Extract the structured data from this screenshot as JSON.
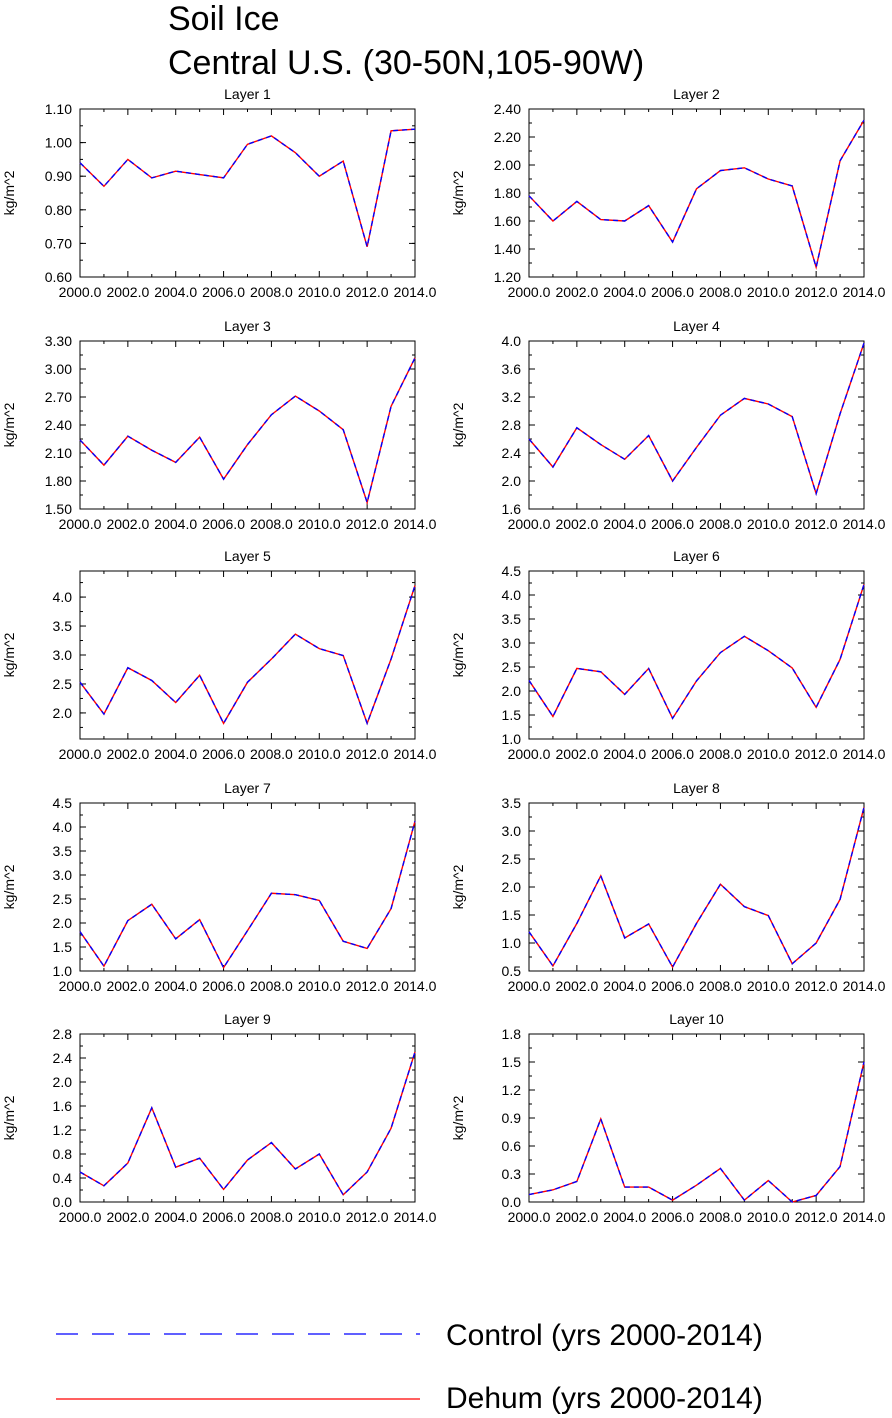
{
  "title": {
    "line1": "Soil Ice",
    "line2": "Central U.S. (30-50N,105-90W)"
  },
  "colors": {
    "control": "#0000ff",
    "dehum": "#ff0000",
    "axis": "#000000"
  },
  "legend": [
    {
      "name": "Control (yrs 2000-2014)",
      "style": "dashed",
      "color": "#0000ff"
    },
    {
      "name": "Dehum (yrs 2000-2014)",
      "style": "solid",
      "color": "#ff0000"
    }
  ],
  "chart_data": [
    {
      "type": "line",
      "title": "Layer 1",
      "ylabel": "kg/m^2",
      "x": [
        2000,
        2001,
        2002,
        2003,
        2004,
        2005,
        2006,
        2007,
        2008,
        2009,
        2010,
        2011,
        2012,
        2013,
        2014
      ],
      "xlim": [
        2000,
        2014
      ],
      "xticks": [
        "2000.0",
        "2002.0",
        "2004.0",
        "2006.0",
        "2008.0",
        "2010.0",
        "2012.0",
        "2014.0"
      ],
      "ylim": [
        0.6,
        1.1
      ],
      "yticks": [
        "0.60",
        "0.70",
        "0.80",
        "0.90",
        "1.00",
        "1.10"
      ],
      "series": [
        {
          "name": "Control (yrs 2000-2014)",
          "values": [
            0.94,
            0.87,
            0.95,
            0.895,
            0.915,
            0.905,
            0.895,
            0.995,
            1.02,
            0.97,
            0.9,
            0.945,
            0.69,
            1.035,
            1.04
          ]
        },
        {
          "name": "Dehum (yrs 2000-2014)",
          "values": [
            0.94,
            0.87,
            0.95,
            0.895,
            0.915,
            0.905,
            0.895,
            0.995,
            1.02,
            0.97,
            0.9,
            0.945,
            0.69,
            1.035,
            1.04
          ]
        }
      ]
    },
    {
      "type": "line",
      "title": "Layer 2",
      "ylabel": "kg/m^2",
      "x": [
        2000,
        2001,
        2002,
        2003,
        2004,
        2005,
        2006,
        2007,
        2008,
        2009,
        2010,
        2011,
        2012,
        2013,
        2014
      ],
      "xlim": [
        2000,
        2014
      ],
      "xticks": [
        "2000.0",
        "2002.0",
        "2004.0",
        "2006.0",
        "2008.0",
        "2010.0",
        "2012.0",
        "2014.0"
      ],
      "ylim": [
        1.2,
        2.4
      ],
      "yticks": [
        "1.20",
        "1.40",
        "1.60",
        "1.80",
        "2.00",
        "2.20",
        "2.40"
      ],
      "series": [
        {
          "name": "Control (yrs 2000-2014)",
          "values": [
            1.78,
            1.6,
            1.74,
            1.61,
            1.6,
            1.71,
            1.45,
            1.83,
            1.96,
            1.98,
            1.9,
            1.85,
            1.27,
            2.03,
            2.32
          ]
        },
        {
          "name": "Dehum (yrs 2000-2014)",
          "values": [
            1.78,
            1.6,
            1.74,
            1.61,
            1.6,
            1.71,
            1.45,
            1.83,
            1.96,
            1.98,
            1.9,
            1.85,
            1.27,
            2.03,
            2.32
          ]
        }
      ]
    },
    {
      "type": "line",
      "title": "Layer 3",
      "ylabel": "kg/m^2",
      "x": [
        2000,
        2001,
        2002,
        2003,
        2004,
        2005,
        2006,
        2007,
        2008,
        2009,
        2010,
        2011,
        2012,
        2013,
        2014
      ],
      "xlim": [
        2000,
        2014
      ],
      "xticks": [
        "2000.0",
        "2002.0",
        "2004.0",
        "2006.0",
        "2008.0",
        "2010.0",
        "2012.0",
        "2014.0"
      ],
      "ylim": [
        1.5,
        3.3
      ],
      "yticks": [
        "1.50",
        "1.80",
        "2.10",
        "2.40",
        "2.70",
        "3.00",
        "3.30"
      ],
      "series": [
        {
          "name": "Control (yrs 2000-2014)",
          "values": [
            2.24,
            1.97,
            2.28,
            2.13,
            2.0,
            2.27,
            1.82,
            2.19,
            2.51,
            2.71,
            2.55,
            2.35,
            1.57,
            2.6,
            3.12
          ]
        },
        {
          "name": "Dehum (yrs 2000-2014)",
          "values": [
            2.24,
            1.97,
            2.28,
            2.13,
            2.0,
            2.27,
            1.82,
            2.19,
            2.51,
            2.71,
            2.55,
            2.35,
            1.57,
            2.6,
            3.12
          ]
        }
      ]
    },
    {
      "type": "line",
      "title": "Layer 4",
      "ylabel": "kg/m^2",
      "x": [
        2000,
        2001,
        2002,
        2003,
        2004,
        2005,
        2006,
        2007,
        2008,
        2009,
        2010,
        2011,
        2012,
        2013,
        2014
      ],
      "xlim": [
        2000,
        2014
      ],
      "xticks": [
        "2000.0",
        "2002.0",
        "2004.0",
        "2006.0",
        "2008.0",
        "2010.0",
        "2012.0",
        "2014.0"
      ],
      "ylim": [
        1.6,
        4.0
      ],
      "yticks": [
        "1.6",
        "2.0",
        "2.4",
        "2.8",
        "3.2",
        "3.6",
        "4.0"
      ],
      "series": [
        {
          "name": "Control (yrs 2000-2014)",
          "values": [
            2.6,
            2.2,
            2.76,
            2.52,
            2.31,
            2.65,
            2.0,
            2.48,
            2.94,
            3.18,
            3.1,
            2.92,
            1.82,
            2.96,
            3.97
          ]
        },
        {
          "name": "Dehum (yrs 2000-2014)",
          "values": [
            2.6,
            2.2,
            2.76,
            2.52,
            2.31,
            2.65,
            2.0,
            2.48,
            2.94,
            3.18,
            3.1,
            2.92,
            1.82,
            2.96,
            3.97
          ]
        }
      ]
    },
    {
      "type": "line",
      "title": "Layer 5",
      "ylabel": "kg/m^2",
      "x": [
        2000,
        2001,
        2002,
        2003,
        2004,
        2005,
        2006,
        2007,
        2008,
        2009,
        2010,
        2011,
        2012,
        2013,
        2014
      ],
      "xlim": [
        2000,
        2014
      ],
      "xticks": [
        "2000.0",
        "2002.0",
        "2004.0",
        "2006.0",
        "2008.0",
        "2010.0",
        "2012.0",
        "2014.0"
      ],
      "ylim": [
        1.55,
        4.45
      ],
      "yticks": [
        "2.0",
        "2.5",
        "3.0",
        "3.5",
        "4.0"
      ],
      "series": [
        {
          "name": "Control (yrs 2000-2014)",
          "values": [
            2.53,
            1.98,
            2.78,
            2.56,
            2.18,
            2.65,
            1.82,
            2.53,
            2.93,
            3.36,
            3.11,
            2.99,
            1.82,
            2.93,
            4.2
          ]
        },
        {
          "name": "Dehum (yrs 2000-2014)",
          "values": [
            2.53,
            1.98,
            2.78,
            2.56,
            2.18,
            2.65,
            1.82,
            2.53,
            2.93,
            3.36,
            3.11,
            2.99,
            1.82,
            2.93,
            4.2
          ]
        }
      ]
    },
    {
      "type": "line",
      "title": "Layer 6",
      "ylabel": "kg/m^2",
      "x": [
        2000,
        2001,
        2002,
        2003,
        2004,
        2005,
        2006,
        2007,
        2008,
        2009,
        2010,
        2011,
        2012,
        2013,
        2014
      ],
      "xlim": [
        2000,
        2014
      ],
      "xticks": [
        "2000.0",
        "2002.0",
        "2004.0",
        "2006.0",
        "2008.0",
        "2010.0",
        "2012.0",
        "2014.0"
      ],
      "ylim": [
        1.0,
        4.5
      ],
      "yticks": [
        "1.0",
        "1.5",
        "2.0",
        "2.5",
        "3.0",
        "3.5",
        "4.0",
        "4.5"
      ],
      "series": [
        {
          "name": "Control (yrs 2000-2014)",
          "values": [
            2.22,
            1.47,
            2.47,
            2.4,
            1.93,
            2.47,
            1.43,
            2.21,
            2.8,
            3.14,
            2.84,
            2.48,
            1.66,
            2.66,
            4.22
          ]
        },
        {
          "name": "Dehum (yrs 2000-2014)",
          "values": [
            2.22,
            1.47,
            2.47,
            2.4,
            1.93,
            2.47,
            1.43,
            2.21,
            2.8,
            3.14,
            2.84,
            2.48,
            1.66,
            2.66,
            4.22
          ]
        }
      ]
    },
    {
      "type": "line",
      "title": "Layer 7",
      "ylabel": "kg/m^2",
      "x": [
        2000,
        2001,
        2002,
        2003,
        2004,
        2005,
        2006,
        2007,
        2008,
        2009,
        2010,
        2011,
        2012,
        2013,
        2014
      ],
      "xlim": [
        2000,
        2014
      ],
      "xticks": [
        "2000.0",
        "2002.0",
        "2004.0",
        "2006.0",
        "2008.0",
        "2010.0",
        "2012.0",
        "2014.0"
      ],
      "ylim": [
        1.0,
        4.5
      ],
      "yticks": [
        "1.0",
        "1.5",
        "2.0",
        "2.5",
        "3.0",
        "3.5",
        "4.0",
        "4.5"
      ],
      "series": [
        {
          "name": "Control (yrs 2000-2014)",
          "values": [
            1.82,
            1.1,
            2.05,
            2.39,
            1.67,
            2.07,
            1.07,
            1.84,
            2.62,
            2.59,
            2.47,
            1.62,
            1.47,
            2.3,
            4.12
          ]
        },
        {
          "name": "Dehum (yrs 2000-2014)",
          "values": [
            1.82,
            1.1,
            2.05,
            2.39,
            1.67,
            2.07,
            1.07,
            1.84,
            2.62,
            2.59,
            2.47,
            1.62,
            1.47,
            2.3,
            4.12
          ]
        }
      ]
    },
    {
      "type": "line",
      "title": "Layer 8",
      "ylabel": "kg/m^2",
      "x": [
        2000,
        2001,
        2002,
        2003,
        2004,
        2005,
        2006,
        2007,
        2008,
        2009,
        2010,
        2011,
        2012,
        2013,
        2014
      ],
      "xlim": [
        2000,
        2014
      ],
      "xticks": [
        "2000.0",
        "2002.0",
        "2004.0",
        "2006.0",
        "2008.0",
        "2010.0",
        "2012.0",
        "2014.0"
      ],
      "ylim": [
        0.5,
        3.5
      ],
      "yticks": [
        "0.5",
        "1.0",
        "1.5",
        "2.0",
        "2.5",
        "3.0",
        "3.5"
      ],
      "series": [
        {
          "name": "Control (yrs 2000-2014)",
          "values": [
            1.2,
            0.59,
            1.35,
            2.2,
            1.09,
            1.34,
            0.57,
            1.35,
            2.05,
            1.65,
            1.49,
            0.63,
            1.0,
            1.78,
            3.42
          ]
        },
        {
          "name": "Dehum (yrs 2000-2014)",
          "values": [
            1.2,
            0.59,
            1.35,
            2.2,
            1.09,
            1.34,
            0.57,
            1.35,
            2.05,
            1.65,
            1.49,
            0.63,
            1.0,
            1.78,
            3.42
          ]
        }
      ]
    },
    {
      "type": "line",
      "title": "Layer 9",
      "ylabel": "kg/m^2",
      "x": [
        2000,
        2001,
        2002,
        2003,
        2004,
        2005,
        2006,
        2007,
        2008,
        2009,
        2010,
        2011,
        2012,
        2013,
        2014
      ],
      "xlim": [
        2000,
        2014
      ],
      "xticks": [
        "2000.0",
        "2002.0",
        "2004.0",
        "2006.0",
        "2008.0",
        "2010.0",
        "2012.0",
        "2014.0"
      ],
      "ylim": [
        0.0,
        2.8
      ],
      "yticks": [
        "0.0",
        "0.4",
        "0.8",
        "1.2",
        "1.6",
        "2.0",
        "2.4",
        "2.8"
      ],
      "series": [
        {
          "name": "Control (yrs 2000-2014)",
          "values": [
            0.5,
            0.27,
            0.65,
            1.57,
            0.58,
            0.73,
            0.21,
            0.7,
            0.99,
            0.55,
            0.8,
            0.12,
            0.5,
            1.23,
            2.5
          ]
        },
        {
          "name": "Dehum (yrs 2000-2014)",
          "values": [
            0.5,
            0.27,
            0.65,
            1.57,
            0.58,
            0.73,
            0.21,
            0.7,
            0.99,
            0.55,
            0.8,
            0.12,
            0.5,
            1.23,
            2.5
          ]
        }
      ]
    },
    {
      "type": "line",
      "title": "Layer 10",
      "ylabel": "kg/m^2",
      "x": [
        2000,
        2001,
        2002,
        2003,
        2004,
        2005,
        2006,
        2007,
        2008,
        2009,
        2010,
        2011,
        2012,
        2013,
        2014
      ],
      "xlim": [
        2000,
        2014
      ],
      "xticks": [
        "2000.0",
        "2002.0",
        "2004.0",
        "2006.0",
        "2008.0",
        "2010.0",
        "2012.0",
        "2014.0"
      ],
      "ylim": [
        0.0,
        1.8
      ],
      "yticks": [
        "0.0",
        "0.3",
        "0.6",
        "0.9",
        "1.2",
        "1.5",
        "1.8"
      ],
      "series": [
        {
          "name": "Control (yrs 2000-2014)",
          "values": [
            0.08,
            0.13,
            0.22,
            0.89,
            0.16,
            0.16,
            0.02,
            0.18,
            0.36,
            0.02,
            0.23,
            0.0,
            0.07,
            0.38,
            1.5
          ]
        },
        {
          "name": "Dehum (yrs 2000-2014)",
          "values": [
            0.08,
            0.13,
            0.22,
            0.89,
            0.16,
            0.16,
            0.02,
            0.18,
            0.36,
            0.02,
            0.23,
            0.0,
            0.07,
            0.38,
            1.5
          ]
        }
      ]
    }
  ]
}
